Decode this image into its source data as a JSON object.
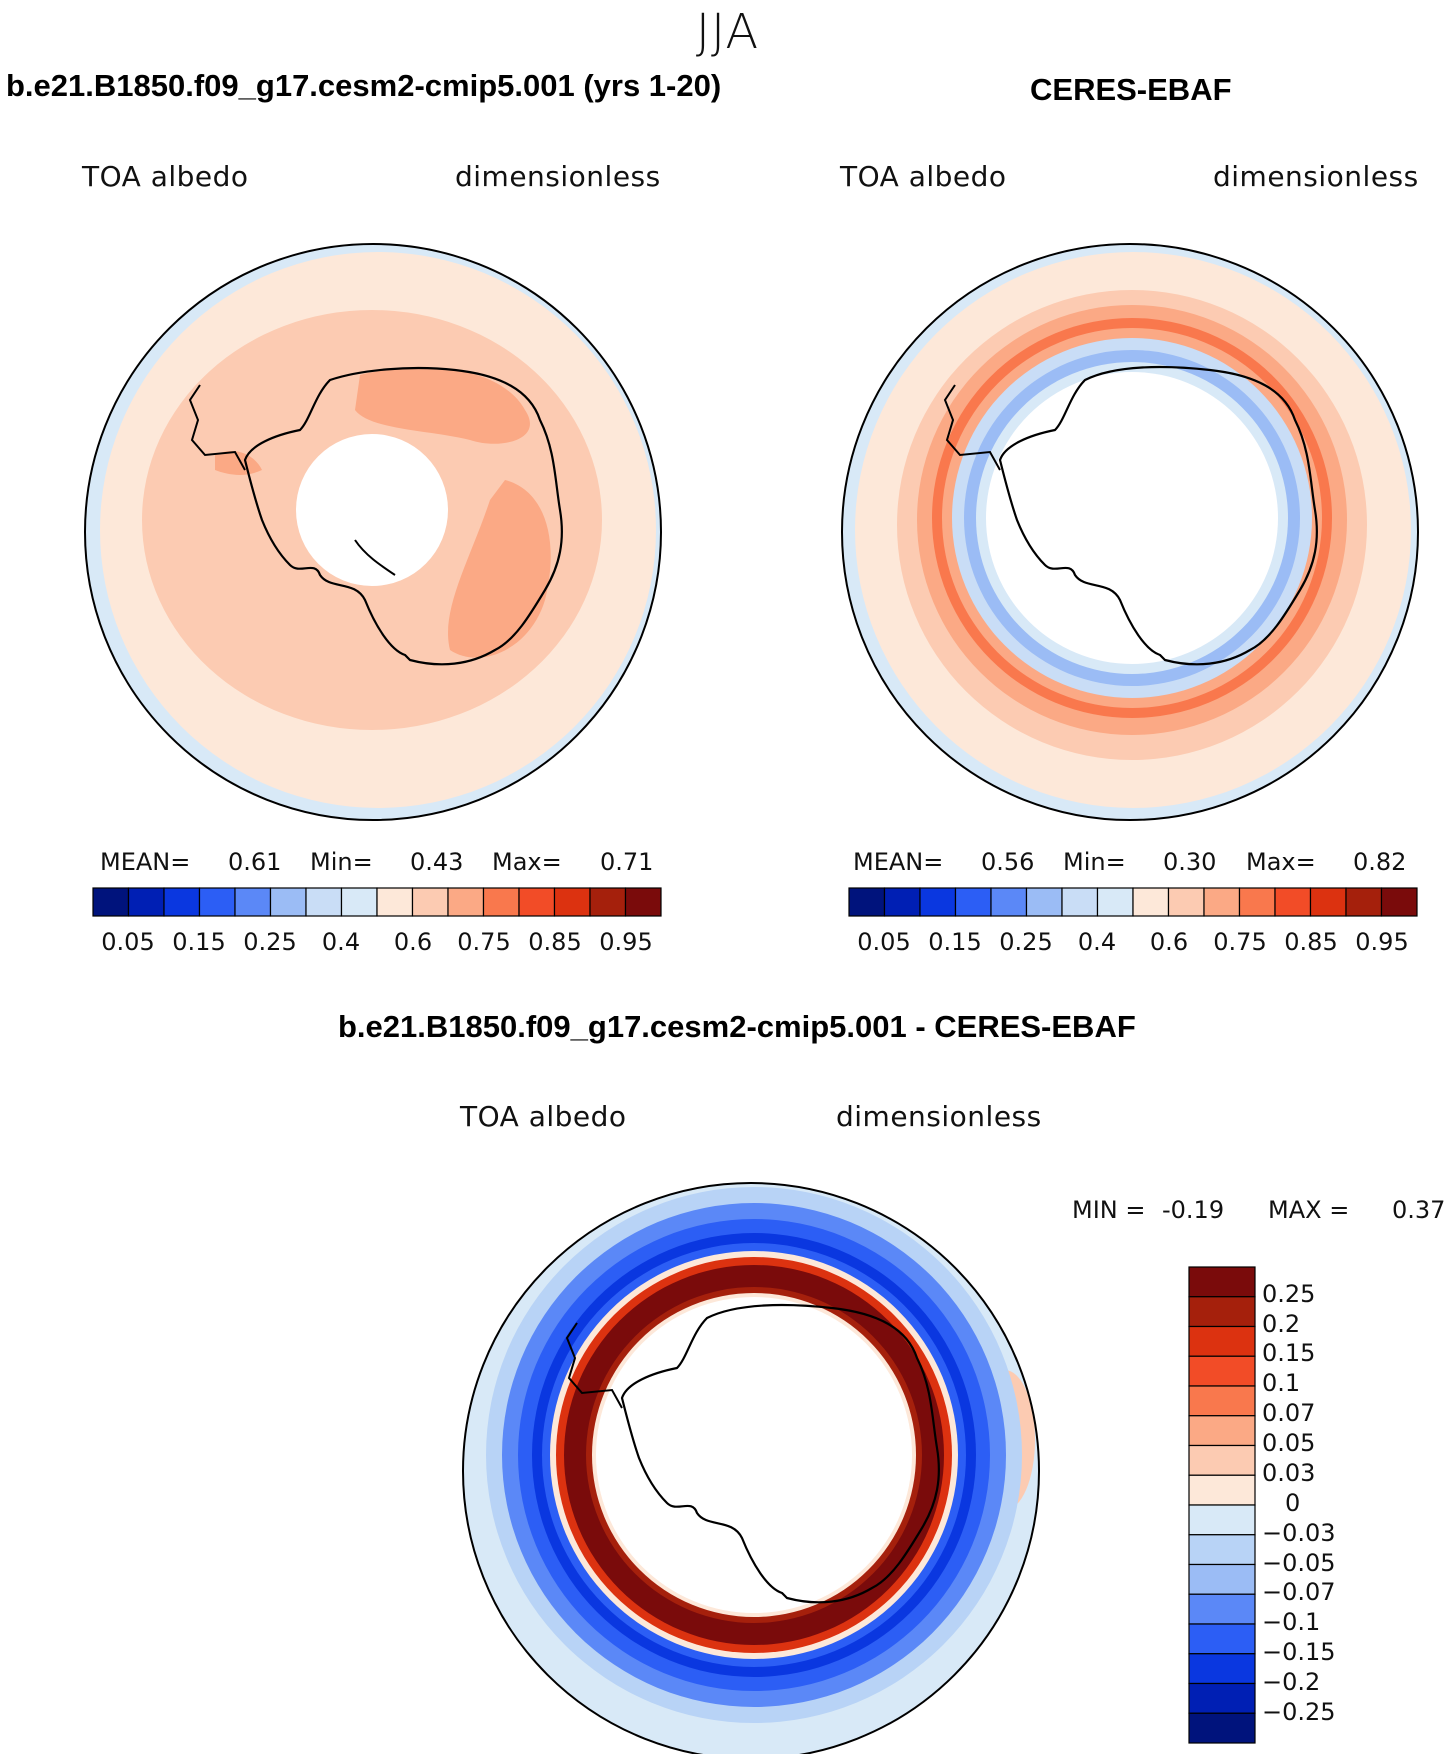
{
  "figure": {
    "season": "JJA",
    "colors": {
      "ocean_edge": "#d8e9f7",
      "coast": "#000000"
    }
  },
  "panels": {
    "model": {
      "title": "b.e21.B1850.f09_g17.cesm2-cmip5.001 (yrs 1-20)",
      "variable": "TOA albedo",
      "units": "dimensionless",
      "mean_label": "MEAN=",
      "mean": "0.61",
      "min_label": "Min=",
      "min": "0.43",
      "max_label": "Max=",
      "max": "0.71"
    },
    "obs": {
      "title": "CERES-EBAF",
      "variable": "TOA albedo",
      "units": "dimensionless",
      "mean_label": "MEAN=",
      "mean": "0.56",
      "min_label": "Min=",
      "min": "0.30",
      "max_label": "Max=",
      "max": "0.82"
    },
    "diff": {
      "title": "b.e21.B1850.f09_g17.cesm2-cmip5.001 - CERES-EBAF",
      "variable": "TOA albedo",
      "units": "dimensionless",
      "min_label": "MIN =",
      "min": "-0.19",
      "max_label": "MAX =",
      "max": "0.37"
    }
  },
  "chart_data": [
    {
      "type": "heatmap",
      "title": "b.e21.B1850.f09_g17.cesm2-cmip5.001 (yrs 1-20)",
      "projection": "south-polar-stereographic",
      "variable": "TOA albedo",
      "units": "dimensionless",
      "mean": 0.61,
      "min": 0.43,
      "max": 0.71,
      "colorbar": {
        "ticks": [
          "0.05",
          "0.15",
          "0.25",
          "0.4",
          "0.6",
          "0.75",
          "0.85",
          "0.95"
        ],
        "colors": [
          "#00137c",
          "#001fb4",
          "#0a37e0",
          "#2c5ef5",
          "#5b88f7",
          "#9bbcf5",
          "#c9ddf6",
          "#d8e9f7",
          "#fde8d9",
          "#fccbb2",
          "#fba985",
          "#f9784d",
          "#f24c27",
          "#dc3210",
          "#a5200c",
          "#7a0b0b"
        ]
      }
    },
    {
      "type": "heatmap",
      "title": "CERES-EBAF",
      "projection": "south-polar-stereographic",
      "variable": "TOA albedo",
      "units": "dimensionless",
      "mean": 0.56,
      "min": 0.3,
      "max": 0.82,
      "colorbar": {
        "ticks": [
          "0.05",
          "0.15",
          "0.25",
          "0.4",
          "0.6",
          "0.75",
          "0.85",
          "0.95"
        ],
        "colors": [
          "#00137c",
          "#001fb4",
          "#0a37e0",
          "#2c5ef5",
          "#5b88f7",
          "#9bbcf5",
          "#c9ddf6",
          "#d8e9f7",
          "#fde8d9",
          "#fccbb2",
          "#fba985",
          "#f9784d",
          "#f24c27",
          "#dc3210",
          "#a5200c",
          "#7a0b0b"
        ]
      }
    },
    {
      "type": "heatmap",
      "title": "b.e21.B1850.f09_g17.cesm2-cmip5.001 - CERES-EBAF",
      "projection": "south-polar-stereographic",
      "variable": "TOA albedo",
      "units": "dimensionless",
      "min": -0.19,
      "max": 0.37,
      "colorbar": {
        "orientation": "vertical",
        "ticks": [
          "0.25",
          "0.2",
          "0.15",
          "0.1",
          "0.07",
          "0.05",
          "0.03",
          "0",
          "−0.03",
          "−0.05",
          "−0.07",
          "−0.1",
          "−0.15",
          "−0.2",
          "−0.25"
        ],
        "colors": [
          "#7a0b0b",
          "#a5200c",
          "#dc3210",
          "#f24c27",
          "#f9784d",
          "#fba985",
          "#fccbb2",
          "#fde8d9",
          "#d8e9f7",
          "#b8d3f6",
          "#9bbcf5",
          "#5b88f7",
          "#2c5ef5",
          "#0a37e0",
          "#001fb4",
          "#00137c"
        ]
      }
    }
  ]
}
